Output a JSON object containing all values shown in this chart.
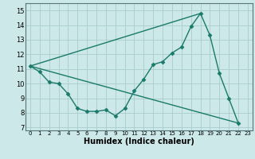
{
  "bg_color": "#cce8e8",
  "grid_color": "#aacccc",
  "line_color": "#1a7a6a",
  "marker": "D",
  "markersize": 2.5,
  "linewidth": 1.0,
  "xlabel": "Humidex (Indice chaleur)",
  "xlabel_fontsize": 7,
  "xlim": [
    -0.5,
    23.5
  ],
  "ylim": [
    6.8,
    15.5
  ],
  "xticks": [
    0,
    1,
    2,
    3,
    4,
    5,
    6,
    7,
    8,
    9,
    10,
    11,
    12,
    13,
    14,
    15,
    16,
    17,
    18,
    19,
    20,
    21,
    22,
    23
  ],
  "yticks": [
    7,
    8,
    9,
    10,
    11,
    12,
    13,
    14,
    15
  ],
  "series_main": {
    "x": [
      0,
      1,
      2,
      3,
      4,
      5,
      6,
      7,
      8,
      9,
      10,
      11,
      12,
      13,
      14,
      15,
      16,
      17,
      18,
      19,
      20,
      21,
      22
    ],
    "y": [
      11.2,
      10.8,
      10.1,
      10.0,
      9.3,
      8.3,
      8.1,
      8.1,
      8.2,
      7.8,
      8.3,
      9.5,
      10.3,
      11.3,
      11.5,
      12.1,
      12.5,
      13.9,
      14.8,
      13.3,
      10.7,
      9.0,
      7.3
    ]
  },
  "series_diag1": {
    "x": [
      0,
      18
    ],
    "y": [
      11.2,
      14.8
    ]
  },
  "series_diag2": {
    "x": [
      0,
      22
    ],
    "y": [
      11.2,
      7.3
    ]
  }
}
